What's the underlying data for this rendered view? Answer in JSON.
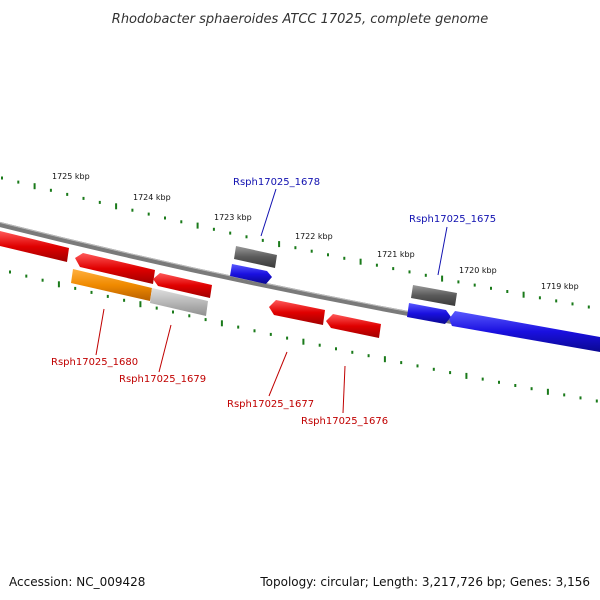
{
  "title": "Rhodobacter sphaeroides ATCC 17025, complete genome",
  "footer": {
    "accession": "Accession: NC_009428",
    "topology": "Topology: circular; Length: 3,217,726 bp; Genes: 3,156"
  },
  "colors": {
    "backbone": "#7a7a7a",
    "tick": "#1a7a1a",
    "cds_red": "#e00000",
    "cds_blue": "#1a10e0",
    "rna_gray": "#5a5a5a",
    "pseudo_orange": "#f08a00",
    "pseudo_lightgray": "#b8b8b8",
    "label_blue": "#1010b0",
    "label_red": "#c00000"
  },
  "ticks": [
    {
      "label": "1725 kbp"
    },
    {
      "label": "1724 kbp"
    },
    {
      "label": "1723 kbp"
    },
    {
      "label": "1722 kbp"
    },
    {
      "label": "1721 kbp"
    },
    {
      "label": "1720 kbp"
    },
    {
      "label": "1719 kbp"
    }
  ],
  "genes": [
    {
      "name": "Rsph17025_1678",
      "color": "label_blue"
    },
    {
      "name": "Rsph17025_1675",
      "color": "label_blue"
    },
    {
      "name": "Rsph17025_1680",
      "color": "label_red"
    },
    {
      "name": "Rsph17025_1679",
      "color": "label_red"
    },
    {
      "name": "Rsph17025_1677",
      "color": "label_red"
    },
    {
      "name": "Rsph17025_1676",
      "color": "label_red"
    }
  ]
}
